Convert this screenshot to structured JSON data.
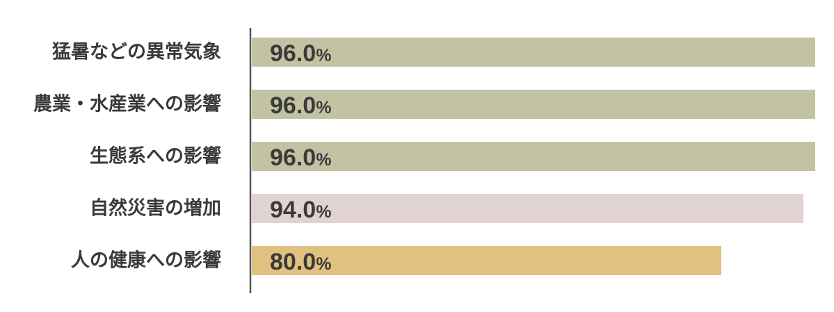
{
  "chart_data": {
    "type": "bar",
    "orientation": "horizontal",
    "categories": [
      "猛暑などの異常気象",
      "農業・水産業への影響",
      "生態系への影響",
      "自然災害の増加",
      "人の健康への影響"
    ],
    "values": [
      96.0,
      96.0,
      96.0,
      94.0,
      80.0
    ],
    "value_labels": [
      "96.0",
      "96.0",
      "96.0",
      "94.0",
      "80.0"
    ],
    "unit": "%",
    "bar_colors": [
      "#c3c3a3",
      "#c3c3a3",
      "#c3c3a3",
      "#e2d3d3",
      "#e1c17f"
    ],
    "xlim": [
      0,
      96
    ],
    "axis_color": "#555555",
    "grid": false,
    "legend": "none"
  }
}
